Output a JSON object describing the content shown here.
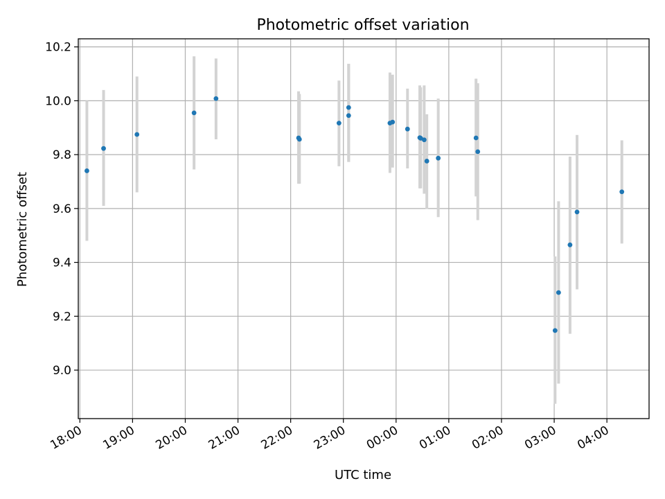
{
  "chart_data": {
    "type": "scatter",
    "title": "Photometric offset variation",
    "xlabel": "UTC time",
    "ylabel": "Photometric offset",
    "x_tick_labels": [
      "18:00",
      "19:00",
      "20:00",
      "21:00",
      "22:00",
      "23:00",
      "00:00",
      "01:00",
      "02:00",
      "03:00",
      "04:00"
    ],
    "x_tick_hours": [
      18,
      19,
      20,
      21,
      22,
      23,
      24,
      25,
      26,
      27,
      28
    ],
    "xlim_hours": [
      17.97,
      28.8
    ],
    "y_ticks": [
      9.0,
      9.2,
      9.4,
      9.6,
      9.8,
      10.0,
      10.2
    ],
    "y_tick_labels": [
      "9.0",
      "9.2",
      "9.4",
      "9.6",
      "9.8",
      "10.0",
      "10.2"
    ],
    "ylim": [
      8.82,
      10.23
    ],
    "grid": true,
    "point_color": "#1f77b4",
    "errorbar_color": "#d3d3d3",
    "points": [
      {
        "t": "18:08",
        "y": 9.74,
        "ylo": 9.48,
        "yhi": 10.0
      },
      {
        "t": "18:27",
        "y": 9.823,
        "ylo": 9.61,
        "yhi": 10.04
      },
      {
        "t": "19:05",
        "y": 9.875,
        "ylo": 9.66,
        "yhi": 10.09
      },
      {
        "t": "20:10",
        "y": 9.955,
        "ylo": 9.745,
        "yhi": 10.165
      },
      {
        "t": "20:35",
        "y": 10.008,
        "ylo": 9.857,
        "yhi": 10.157
      },
      {
        "t": "22:09",
        "y": 9.862,
        "ylo": 9.692,
        "yhi": 10.035
      },
      {
        "t": "22:10",
        "y": 9.857,
        "ylo": 9.692,
        "yhi": 10.025
      },
      {
        "t": "22:55",
        "y": 9.917,
        "ylo": 9.757,
        "yhi": 10.075
      },
      {
        "t": "23:06",
        "y": 9.975,
        "ylo": 9.773,
        "yhi": 10.137
      },
      {
        "t": "23:06",
        "y": 9.945,
        "ylo": 9.773,
        "yhi": 10.137
      },
      {
        "t": "23:53",
        "y": 9.917,
        "ylo": 9.732,
        "yhi": 10.105
      },
      {
        "t": "23:56",
        "y": 9.921,
        "ylo": 9.752,
        "yhi": 10.097
      },
      {
        "t": "00:13",
        "y": 9.895,
        "ylo": 9.749,
        "yhi": 10.045
      },
      {
        "t": "00:27",
        "y": 9.863,
        "ylo": 9.675,
        "yhi": 10.057
      },
      {
        "t": "00:28",
        "y": 9.861,
        "ylo": 9.675,
        "yhi": 10.05
      },
      {
        "t": "00:32",
        "y": 9.855,
        "ylo": 9.655,
        "yhi": 10.057
      },
      {
        "t": "00:35",
        "y": 9.776,
        "ylo": 9.598,
        "yhi": 9.95
      },
      {
        "t": "00:48",
        "y": 9.787,
        "ylo": 9.568,
        "yhi": 10.008
      },
      {
        "t": "01:31",
        "y": 9.862,
        "ylo": 9.645,
        "yhi": 10.082
      },
      {
        "t": "01:33",
        "y": 9.811,
        "ylo": 9.557,
        "yhi": 10.065
      },
      {
        "t": "03:01",
        "y": 9.147,
        "ylo": 8.875,
        "yhi": 9.422
      },
      {
        "t": "03:05",
        "y": 9.288,
        "ylo": 8.95,
        "yhi": 9.627
      },
      {
        "t": "03:18",
        "y": 9.465,
        "ylo": 9.135,
        "yhi": 9.793
      },
      {
        "t": "03:26",
        "y": 9.587,
        "ylo": 9.3,
        "yhi": 9.873
      },
      {
        "t": "04:17",
        "y": 9.662,
        "ylo": 9.47,
        "yhi": 9.853
      }
    ]
  }
}
